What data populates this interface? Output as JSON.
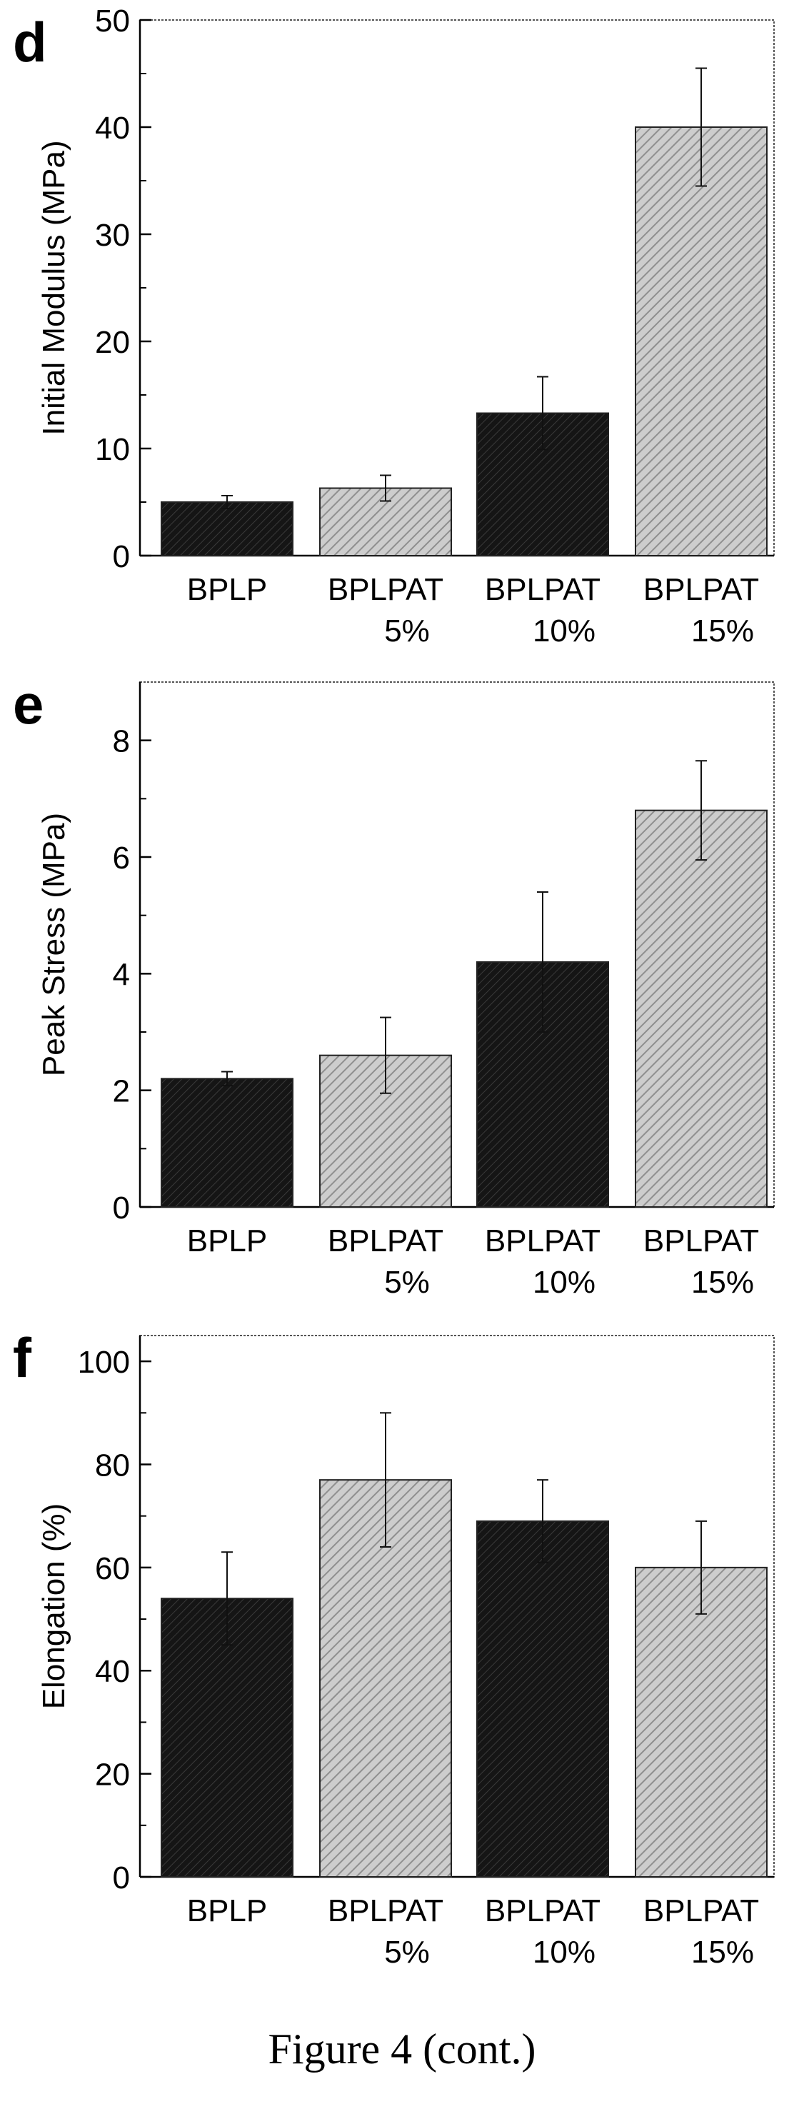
{
  "caption": "Figure 4 (cont.)",
  "colors": {
    "dark_bar": "#151515",
    "light_bar": "#c8c8c8",
    "text": "#000000",
    "frame": "#555555"
  },
  "chart_data": [
    {
      "panel_label": "d",
      "type": "bar",
      "ylabel": "Initial Modulus (MPa)",
      "ylim": [
        0,
        50
      ],
      "yticks": [
        "0",
        "10",
        "20",
        "30",
        "40",
        "50"
      ],
      "categories": [
        {
          "line1": "BPLP",
          "line2": ""
        },
        {
          "line1": "BPLPAT",
          "line2": "5%"
        },
        {
          "line1": "BPLPAT",
          "line2": "10%"
        },
        {
          "line1": "BPLPAT",
          "line2": "15%"
        }
      ],
      "values": [
        5.0,
        6.3,
        13.3,
        40.0
      ],
      "errors": [
        0.6,
        1.2,
        3.4,
        5.5
      ],
      "fill": [
        "dark",
        "light",
        "dark",
        "light"
      ]
    },
    {
      "panel_label": "e",
      "type": "bar",
      "ylabel": "Peak Stress (MPa)",
      "ylim": [
        0,
        9
      ],
      "yticks": [
        "0",
        "2",
        "4",
        "6",
        "8"
      ],
      "categories": [
        {
          "line1": "BPLP",
          "line2": ""
        },
        {
          "line1": "BPLPAT",
          "line2": "5%"
        },
        {
          "line1": "BPLPAT",
          "line2": "10%"
        },
        {
          "line1": "BPLPAT",
          "line2": "15%"
        }
      ],
      "values": [
        2.2,
        2.6,
        4.2,
        6.8
      ],
      "errors": [
        0.12,
        0.65,
        1.2,
        0.85
      ],
      "fill": [
        "dark",
        "light",
        "dark",
        "light"
      ]
    },
    {
      "panel_label": "f",
      "type": "bar",
      "ylabel": "Elongation (%)",
      "ylim": [
        0,
        105
      ],
      "yticks": [
        "0",
        "20",
        "40",
        "60",
        "80",
        "100"
      ],
      "categories": [
        {
          "line1": "BPLP",
          "line2": ""
        },
        {
          "line1": "BPLPAT",
          "line2": "5%"
        },
        {
          "line1": "BPLPAT",
          "line2": "10%"
        },
        {
          "line1": "BPLPAT",
          "line2": "15%"
        }
      ],
      "values": [
        54,
        77,
        69,
        60
      ],
      "errors": [
        9,
        13,
        8,
        9
      ],
      "fill": [
        "dark",
        "light",
        "dark",
        "light"
      ]
    }
  ]
}
